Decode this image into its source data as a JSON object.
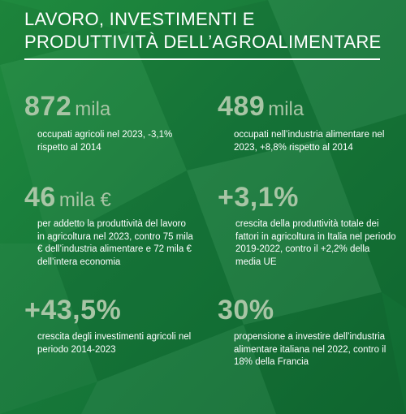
{
  "title": {
    "line1": "LAVORO, INVESTIMENTI E",
    "line2": "PRODUTTIVITÀ DELL’AGROALIMENTARE"
  },
  "colors": {
    "background": "#1a7f3b",
    "value_text": "#a8c5a5",
    "text": "#ffffff"
  },
  "stats": [
    {
      "value": "872",
      "unit": "mila",
      "description": "occupati agricoli nel 2023, -3,1% rispetto al 2014"
    },
    {
      "value": "489",
      "unit": "mila",
      "description": "occupati nell’industria alimentare nel 2023, +8,8% rispetto al 2014"
    },
    {
      "value": "46",
      "unit": "mila €",
      "description": "per addetto la produttività del lavoro in agricoltura nel 2023, contro 75 mila € dell’industria alimentare e 72 mila € dell’intera economia"
    },
    {
      "value": "+3,1%",
      "unit": "",
      "description": "crescita della produttività totale dei fattori in agricoltura in Italia nel periodo 2019-2022, contro il +2,2% della media UE"
    },
    {
      "value": "+43,5%",
      "unit": "",
      "description": "crescita degli investimenti agricoli nel periodo 2014-2023"
    },
    {
      "value": "30%",
      "unit": "",
      "description": "propensione a investire dell’industria alimentare italiana nel 2022, contro il 18% della Francia"
    }
  ]
}
